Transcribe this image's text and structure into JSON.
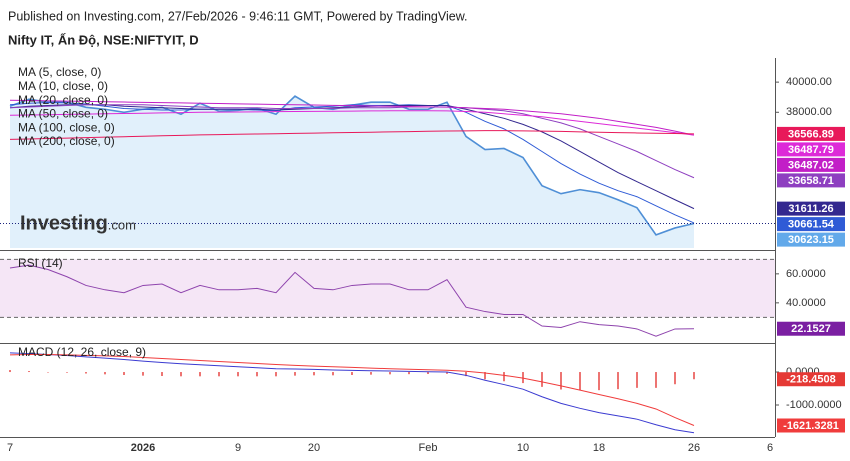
{
  "header": {
    "published": "Published on Investing.com, 27/Feb/2026 - 9:46:11 GMT, Powered by TradingView.",
    "symbol": "Nifty IT, Ấn Độ, NSE:NIFTYIT, D"
  },
  "watermark": [
    "Investing",
    ".com"
  ],
  "chart_data": [
    {
      "type": "line",
      "ylim": [
        29000,
        41600
      ],
      "yticks": [
        {
          "value": 40000,
          "label": "40000.00"
        },
        {
          "value": 38000,
          "label": "38000.00"
        }
      ],
      "series": [
        {
          "type": "area",
          "color": "#4f8fd6",
          "fill": "#e1f0fb",
          "badge_color": "#62a9ea",
          "last_label": true,
          "values": [
            38400,
            38870,
            38670,
            38670,
            38330,
            38200,
            38000,
            38200,
            38330,
            37870,
            38600,
            38070,
            38130,
            38270,
            37870,
            39070,
            38330,
            38200,
            38470,
            38670,
            38670,
            38200,
            38200,
            38670,
            36400,
            35530,
            35600,
            35000,
            33130,
            32600,
            32870,
            32670,
            32200,
            31670,
            29870,
            30330,
            30623.15,
            null,
            null,
            null,
            null
          ]
        },
        {
          "name": "MA (5, close, 0)",
          "color": "#2f5bd6",
          "last_label": true,
          "values": [
            38500,
            38600,
            38650,
            38620,
            38550,
            38400,
            38250,
            38200,
            38150,
            38150,
            38200,
            38200,
            38200,
            38150,
            38100,
            38300,
            38350,
            38400,
            38500,
            38450,
            38450,
            38500,
            38450,
            38450,
            38000,
            37400,
            36900,
            36200,
            35400,
            34600,
            33900,
            33300,
            32800,
            32400,
            31800,
            31200,
            30661.54,
            null,
            null,
            null,
            null
          ]
        },
        {
          "name": "MA (10, close, 0)",
          "color": "#33288f",
          "last_label": true,
          "values": [
            38300,
            38400,
            38450,
            38500,
            38500,
            38500,
            38400,
            38350,
            38300,
            38250,
            38200,
            38200,
            38200,
            38200,
            38150,
            38200,
            38250,
            38300,
            38350,
            38400,
            38450,
            38450,
            38450,
            38450,
            38200,
            37900,
            37600,
            37200,
            36700,
            36100,
            35400,
            34700,
            34000,
            33400,
            32800,
            32200,
            31611.26,
            null,
            null,
            null,
            null
          ]
        },
        {
          "name": "MA (20, close, 0)",
          "color": "#8e3fc0",
          "last_label": true,
          "values": [
            38300,
            38350,
            38400,
            38450,
            38500,
            38500,
            38500,
            38500,
            38450,
            38400,
            38350,
            38300,
            38300,
            38300,
            38250,
            38250,
            38250,
            38250,
            38300,
            38300,
            38300,
            38350,
            38350,
            38350,
            38300,
            38200,
            38100,
            37900,
            37600,
            37300,
            36900,
            36400,
            35900,
            35400,
            34800,
            34200,
            33658.71,
            null,
            null,
            null,
            null
          ]
        },
        {
          "name": "MA (50, close, 0)",
          "color": "#c21fc7",
          "last_label": true,
          "values": [
            38800,
            38780,
            38760,
            38740,
            38720,
            38700,
            38680,
            38660,
            38640,
            38620,
            38600,
            38580,
            38560,
            38540,
            38520,
            38500,
            38480,
            38460,
            38440,
            38420,
            38400,
            38380,
            38360,
            38340,
            38300,
            38250,
            38200,
            38100,
            38000,
            37900,
            37750,
            37600,
            37400,
            37200,
            37000,
            36750,
            36487.02,
            null,
            null,
            null,
            null
          ]
        },
        {
          "name": "MA (100, close, 0)",
          "color": "#dd2ad8",
          "last_label": true,
          "values": [
            37800,
            37820,
            37840,
            37860,
            37880,
            37900,
            37920,
            37940,
            37960,
            37980,
            38000,
            38010,
            38020,
            38030,
            38040,
            38050,
            38060,
            38070,
            38080,
            38090,
            38100,
            38100,
            38100,
            38090,
            38050,
            38000,
            37900,
            37800,
            37700,
            37550,
            37400,
            37250,
            37100,
            36950,
            36800,
            36650,
            36487.79,
            null,
            null,
            null,
            null
          ]
        },
        {
          "name": "MA (200, close, 0)",
          "color": "#e8195a",
          "last_label": true,
          "values": [
            36200,
            36230,
            36260,
            36290,
            36320,
            36350,
            36380,
            36410,
            36440,
            36470,
            36500,
            36520,
            36540,
            36560,
            36580,
            36600,
            36620,
            36640,
            36660,
            36680,
            36700,
            36720,
            36740,
            36760,
            36770,
            36780,
            36780,
            36770,
            36750,
            36730,
            36700,
            36680,
            36650,
            36630,
            36610,
            36590,
            36566.89,
            null,
            null,
            null,
            null
          ]
        }
      ]
    },
    {
      "type": "line",
      "title": "RSI (14)",
      "ylim": [
        13,
        73
      ],
      "yticks": [
        {
          "value": 60,
          "label": "60.0000"
        },
        {
          "value": 40,
          "label": "40.0000"
        }
      ],
      "levels": [
        30,
        70
      ],
      "band_color": "#f5e6f6",
      "series": [
        {
          "color": "#8e44ad",
          "badge_color": "#7b1fa2",
          "last_label": true,
          "values": [
            64,
            66,
            63,
            58,
            52,
            49,
            47,
            52,
            53,
            47,
            52,
            49,
            49,
            50,
            47,
            61,
            50,
            49,
            52,
            53,
            53,
            49,
            49,
            56,
            37,
            34,
            32,
            32,
            24,
            23,
            27,
            25,
            24,
            22,
            17,
            22,
            22.1527,
            null,
            null,
            null,
            null
          ]
        }
      ]
    },
    {
      "type": "line",
      "title": "MACD (12, 26, close, 9)",
      "ylim": [
        -1940,
        850
      ],
      "yticks": [
        {
          "value": 0,
          "label": "0.0000"
        },
        {
          "value": -1000,
          "label": "-1000.0000"
        }
      ],
      "categories": [
        "7",
        null,
        null,
        null,
        null,
        null,
        null,
        "2026",
        null,
        null,
        null,
        null,
        "9",
        null,
        null,
        null,
        "20",
        null,
        null,
        null,
        null,
        null,
        "Feb",
        null,
        null,
        null,
        null,
        "10",
        null,
        null,
        null,
        "18",
        null,
        null,
        null,
        null,
        "26",
        null,
        null,
        null,
        "6"
      ],
      "series": [
        {
          "type": "bar",
          "color": "#e53935",
          "last_label": true,
          "values": [
            60,
            30,
            0,
            -20,
            -45,
            -70,
            -90,
            -110,
            -120,
            -130,
            -130,
            -130,
            -130,
            -130,
            -130,
            -110,
            -100,
            -100,
            -90,
            -80,
            -70,
            -65,
            -60,
            -55,
            -125,
            -220,
            -280,
            -335,
            -450,
            -530,
            -550,
            -550,
            -520,
            -480,
            -480,
            -370,
            -218.4508,
            null,
            null,
            null,
            null
          ]
        },
        {
          "color": "#3b3bd1",
          "values": [
            580,
            560,
            530,
            500,
            460,
            420,
            380,
            330,
            290,
            250,
            220,
            190,
            160,
            130,
            100,
            90,
            80,
            60,
            50,
            40,
            30,
            20,
            10,
            0,
            -100,
            -250,
            -380,
            -520,
            -750,
            -950,
            -1100,
            -1230,
            -1330,
            -1430,
            -1600,
            -1750,
            -1840,
            null,
            null,
            null,
            null
          ]
        },
        {
          "color": "#f03c3c",
          "last_label": true,
          "values": [
            520,
            530,
            530,
            520,
            505,
            490,
            470,
            440,
            410,
            380,
            350,
            320,
            290,
            260,
            230,
            200,
            180,
            160,
            140,
            120,
            100,
            85,
            70,
            55,
            25,
            -30,
            -100,
            -185,
            -300,
            -420,
            -550,
            -680,
            -810,
            -950,
            -1120,
            -1380,
            -1621.3281,
            null,
            null,
            null,
            null
          ]
        }
      ]
    }
  ]
}
